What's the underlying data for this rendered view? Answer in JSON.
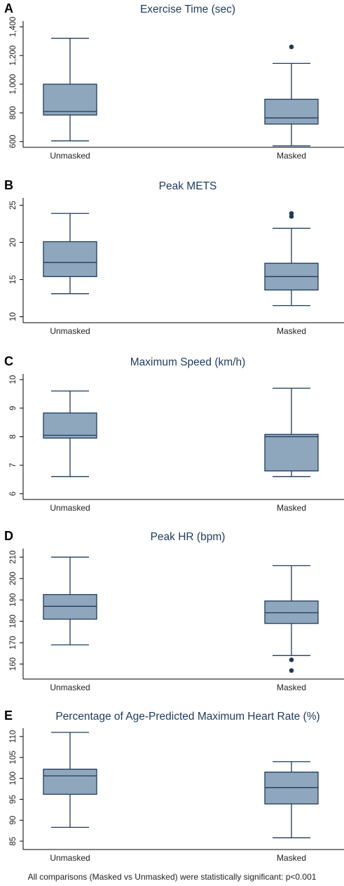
{
  "chart_data": [
    {
      "type": "box",
      "panel_label": "A",
      "title": "Exercise Time (sec)",
      "categories": [
        "Unmasked",
        "Masked"
      ],
      "yticks": [
        600,
        800,
        1000,
        1200,
        1400
      ],
      "ytick_labels": [
        "600",
        "800",
        "1,000",
        "1,200",
        "1,400"
      ],
      "ylim": [
        560,
        1440
      ],
      "boxes": [
        {
          "min": 605,
          "q1": 785,
          "median": 810,
          "q3": 1000,
          "max": 1320,
          "outliers": []
        },
        {
          "min": 570,
          "q1": 722,
          "median": 765,
          "q3": 895,
          "max": 1145,
          "outliers": [
            1260
          ]
        }
      ]
    },
    {
      "type": "box",
      "panel_label": "B",
      "title": "Peak METS",
      "categories": [
        "Unmasked",
        "Masked"
      ],
      "yticks": [
        10,
        15,
        20,
        25
      ],
      "ytick_labels": [
        "10",
        "15",
        "20",
        "25"
      ],
      "ylim": [
        9.2,
        26
      ],
      "boxes": [
        {
          "min": 13.1,
          "q1": 15.4,
          "median": 17.3,
          "q3": 20.1,
          "max": 23.9,
          "outliers": []
        },
        {
          "min": 11.5,
          "q1": 13.6,
          "median": 15.4,
          "q3": 17.2,
          "max": 21.9,
          "outliers": [
            23.5,
            23.9
          ]
        }
      ]
    },
    {
      "type": "box",
      "panel_label": "C",
      "title": "Maximum Speed (km/h)",
      "categories": [
        "Unmasked",
        "Masked"
      ],
      "yticks": [
        6,
        7,
        8,
        9,
        10
      ],
      "ytick_labels": [
        "6",
        "7",
        "8",
        "9",
        "10"
      ],
      "ylim": [
        5.8,
        10.2
      ],
      "boxes": [
        {
          "min": 6.6,
          "q1": 7.95,
          "median": 8.05,
          "q3": 8.83,
          "max": 9.6,
          "outliers": []
        },
        {
          "min": 6.6,
          "q1": 6.8,
          "median": 8.0,
          "q3": 8.08,
          "max": 9.7,
          "outliers": []
        }
      ]
    },
    {
      "type": "box",
      "panel_label": "D",
      "title": "Peak HR (bpm)",
      "categories": [
        "Unmasked",
        "Masked"
      ],
      "yticks": [
        160,
        170,
        180,
        190,
        200,
        210
      ],
      "ytick_labels": [
        "160",
        "170",
        "180",
        "190",
        "200",
        "210"
      ],
      "ylim": [
        153,
        214
      ],
      "boxes": [
        {
          "min": 169,
          "q1": 181,
          "median": 187,
          "q3": 192.5,
          "max": 210,
          "outliers": []
        },
        {
          "min": 164,
          "q1": 179,
          "median": 184,
          "q3": 189.5,
          "max": 206,
          "outliers": [
            162,
            157
          ]
        }
      ]
    },
    {
      "type": "box",
      "panel_label": "E",
      "title": "Percentage of Age-Predicted Maximum Heart Rate (%)",
      "categories": [
        "Unmasked",
        "Masked"
      ],
      "yticks": [
        85,
        90,
        95,
        100,
        105,
        110
      ],
      "ytick_labels": [
        "85",
        "90",
        "95",
        "100",
        "105",
        "110"
      ],
      "ylim": [
        83,
        112
      ],
      "boxes": [
        {
          "min": 88.3,
          "q1": 96.2,
          "median": 100.6,
          "q3": 102.2,
          "max": 111,
          "outliers": []
        },
        {
          "min": 85.8,
          "q1": 93.9,
          "median": 97.8,
          "q3": 101.5,
          "max": 104,
          "outliers": []
        }
      ]
    }
  ],
  "footnote": "All comparisons (Masked vs Unmasked) were statistically significant: p<0.001",
  "colors": {
    "box_fill": "#8fa7bd",
    "box_stroke": "#1e3a5f",
    "outlier": "#1e3a5f",
    "axis": "#000000"
  }
}
